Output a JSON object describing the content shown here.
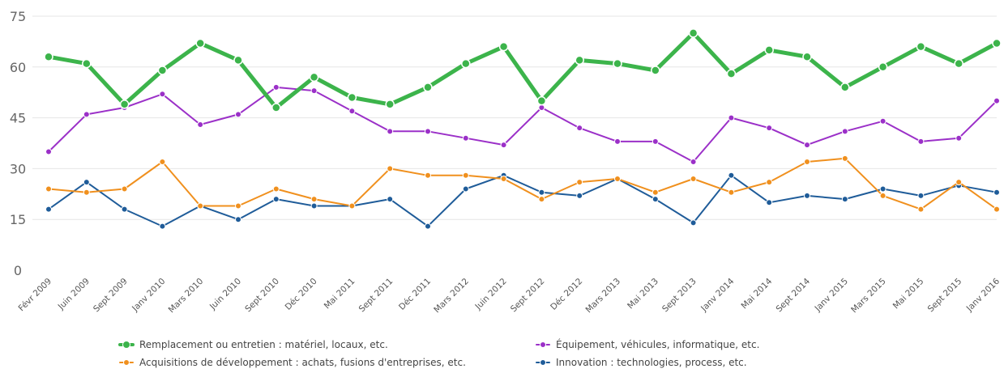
{
  "chart_data": {
    "type": "line",
    "title": "",
    "xlabel": "",
    "ylabel": "",
    "ylim": [
      0,
      75
    ],
    "yticks": [
      0,
      15,
      30,
      45,
      60,
      75
    ],
    "grid": "horizontal",
    "legend_position": "bottom",
    "categories": [
      "Févr 2009",
      "Juin 2009",
      "Sept 2009",
      "Janv 2010",
      "Mars 2010",
      "Juin 2010",
      "Sept 2010",
      "Déc 2010",
      "Mai 2011",
      "Sept 2011",
      "Déc 2011",
      "Mars 2012",
      "Juin 2012",
      "Sept 2012",
      "Déc 2012",
      "Mars 2013",
      "Mai 2013",
      "Sept 2013",
      "Janv 2014",
      "Mai 2014",
      "Sept 2014",
      "Janv 2015",
      "Mars 2015",
      "Mai 2015",
      "Sept 2015",
      "Janv 2016"
    ],
    "series": [
      {
        "name": "Remplacement ou entretien : matériel, locaux, etc.",
        "color": "#3cb44b",
        "values": [
          63,
          61,
          49,
          59,
          67,
          62,
          48,
          57,
          51,
          49,
          54,
          61,
          66,
          50,
          62,
          61,
          59,
          70,
          58,
          65,
          63,
          54,
          60,
          66,
          61,
          67
        ]
      },
      {
        "name": "Équipement, véhicules, informatique, etc.",
        "color": "#9b30c8",
        "values": [
          35,
          46,
          48,
          52,
          43,
          46,
          54,
          53,
          47,
          41,
          41,
          39,
          37,
          48,
          42,
          38,
          38,
          32,
          45,
          42,
          37,
          41,
          44,
          38,
          39,
          50
        ]
      },
      {
        "name": "Acquisitions de développement : achats, fusions d'entreprises, etc.",
        "color": "#f0901e",
        "values": [
          24,
          23,
          24,
          32,
          19,
          19,
          24,
          21,
          19,
          30,
          28,
          28,
          27,
          21,
          26,
          27,
          23,
          27,
          23,
          26,
          32,
          33,
          22,
          18,
          26,
          18
        ]
      },
      {
        "name": "Innovation : technologies, process, etc.",
        "color": "#1f5c99",
        "values": [
          18,
          26,
          18,
          13,
          19,
          15,
          21,
          19,
          19,
          21,
          13,
          24,
          28,
          23,
          22,
          27,
          21,
          14,
          28,
          20,
          22,
          21,
          24,
          22,
          25,
          23
        ]
      }
    ]
  }
}
